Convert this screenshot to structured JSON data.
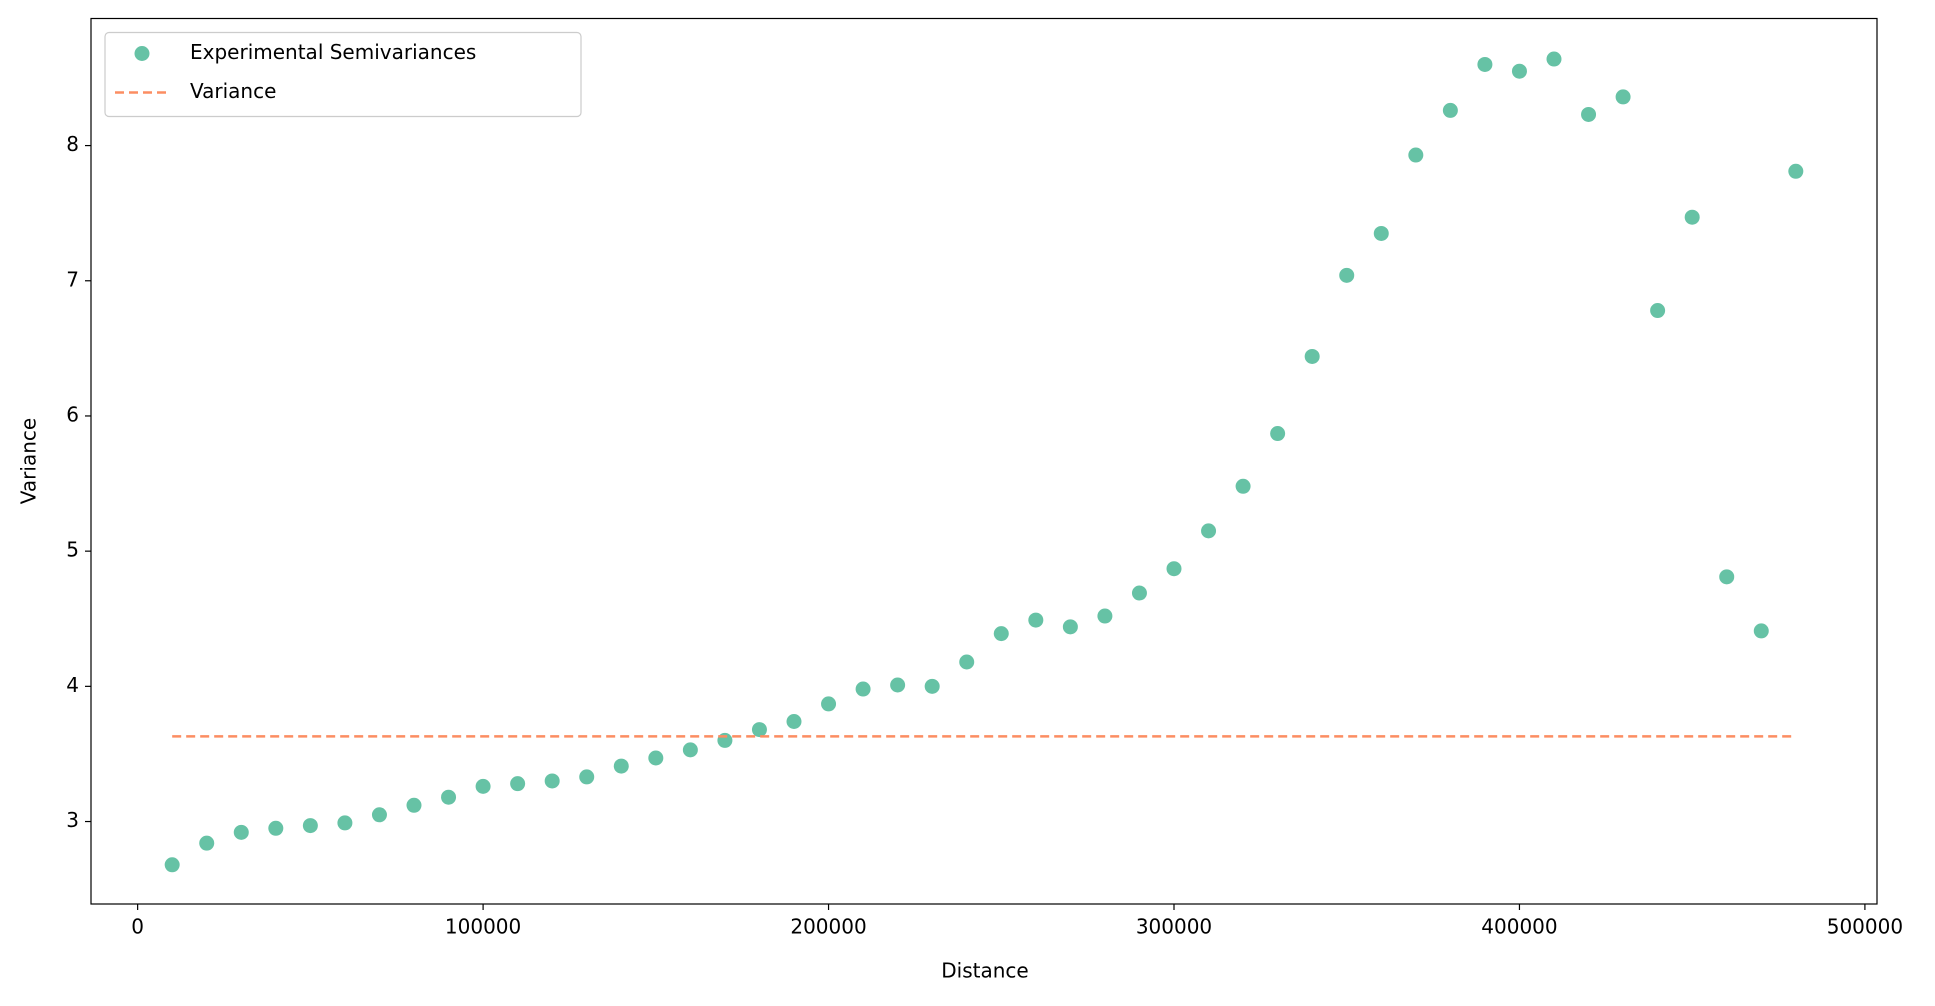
{
  "chart_data": {
    "type": "scatter",
    "xlabel": "Distance",
    "ylabel": "Variance",
    "xlim": [
      -13500,
      503500
    ],
    "ylim": [
      2.39,
      8.94
    ],
    "xticks": [
      0,
      100000,
      200000,
      300000,
      400000,
      500000
    ],
    "yticks": [
      3,
      4,
      5,
      6,
      7,
      8
    ],
    "grid": false,
    "legend": "upper left",
    "series": [
      {
        "name": "Experimental Semivariances",
        "type": "scatter",
        "color": "#66c2a5",
        "x": [
          10000,
          20000,
          30000,
          40000,
          50000,
          60000,
          70000,
          80000,
          90000,
          100000,
          110000,
          120000,
          130000,
          140000,
          150000,
          160000,
          170000,
          180000,
          190000,
          200000,
          210000,
          220000,
          230000,
          240000,
          250000,
          260000,
          270000,
          280000,
          290000,
          300000,
          310000,
          320000,
          330000,
          340000,
          350000,
          360000,
          370000,
          380000,
          390000,
          400000,
          410000,
          420000,
          430000,
          440000,
          450000,
          460000,
          470000,
          480000
        ],
        "values": [
          2.68,
          2.84,
          2.92,
          2.95,
          2.97,
          2.99,
          3.05,
          3.12,
          3.18,
          3.26,
          3.28,
          3.3,
          3.33,
          3.41,
          3.47,
          3.53,
          3.6,
          3.68,
          3.74,
          3.87,
          3.98,
          4.01,
          4.0,
          4.18,
          4.39,
          4.49,
          4.44,
          4.52,
          4.69,
          4.87,
          5.15,
          5.48,
          5.87,
          6.44,
          7.04,
          7.35,
          7.93,
          8.26,
          8.6,
          8.55,
          8.64,
          8.23,
          8.36,
          6.78,
          7.47,
          4.81,
          4.41,
          7.81
        ]
      },
      {
        "name": "Variance",
        "type": "line",
        "dashed": true,
        "color": "#fc8d62",
        "x": [
          10000,
          480000
        ],
        "values": [
          3.63,
          3.63
        ]
      }
    ]
  }
}
